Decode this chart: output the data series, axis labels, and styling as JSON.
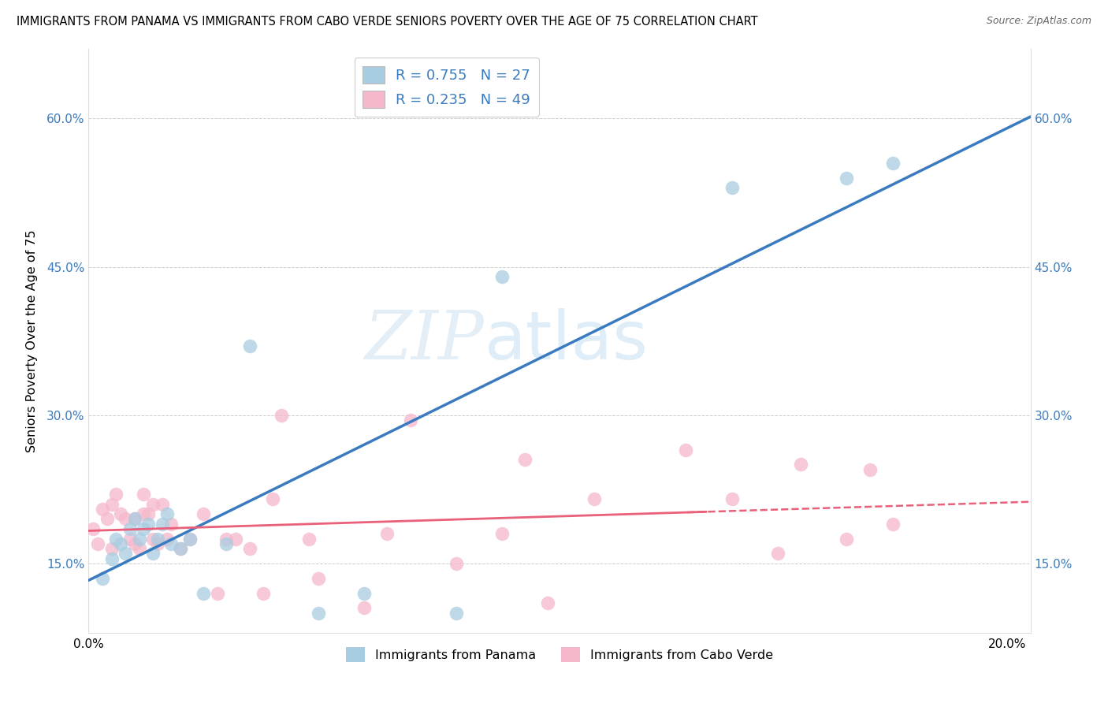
{
  "title": "IMMIGRANTS FROM PANAMA VS IMMIGRANTS FROM CABO VERDE SENIORS POVERTY OVER THE AGE OF 75 CORRELATION CHART",
  "source": "Source: ZipAtlas.com",
  "ylabel": "Seniors Poverty Over the Age of 75",
  "legend_panama": "Immigrants from Panama",
  "legend_caboverde": "Immigrants from Cabo Verde",
  "R_panama": 0.755,
  "N_panama": 27,
  "R_caboverde": 0.235,
  "N_caboverde": 49,
  "xlim": [
    0.0,
    0.205
  ],
  "ylim": [
    0.08,
    0.67
  ],
  "xticks": [
    0.0,
    0.04,
    0.08,
    0.12,
    0.16,
    0.2
  ],
  "yticks": [
    0.15,
    0.3,
    0.45,
    0.6
  ],
  "ytick_labels": [
    "15.0%",
    "30.0%",
    "45.0%",
    "60.0%"
  ],
  "xtick_labels": [
    "0.0%",
    "",
    "",
    "",
    "",
    "20.0%"
  ],
  "color_panama": "#a8cce0",
  "color_caboverde": "#f5b8cb",
  "line_color_panama": "#3a7bbf",
  "line_color_caboverde": "#e8607a",
  "watermark_zip": "ZIP",
  "watermark_atlas": "atlas",
  "panama_x": [
    0.003,
    0.005,
    0.006,
    0.007,
    0.008,
    0.009,
    0.01,
    0.011,
    0.012,
    0.013,
    0.014,
    0.015,
    0.016,
    0.017,
    0.018,
    0.02,
    0.022,
    0.025,
    0.03,
    0.035,
    0.05,
    0.06,
    0.08,
    0.09,
    0.14,
    0.165,
    0.175
  ],
  "panama_y": [
    0.135,
    0.155,
    0.175,
    0.17,
    0.16,
    0.185,
    0.195,
    0.175,
    0.185,
    0.19,
    0.16,
    0.175,
    0.19,
    0.2,
    0.17,
    0.165,
    0.175,
    0.12,
    0.17,
    0.37,
    0.1,
    0.12,
    0.1,
    0.44,
    0.53,
    0.54,
    0.555
  ],
  "caboverde_x": [
    0.001,
    0.002,
    0.003,
    0.004,
    0.005,
    0.005,
    0.006,
    0.007,
    0.008,
    0.009,
    0.01,
    0.01,
    0.011,
    0.012,
    0.012,
    0.013,
    0.014,
    0.014,
    0.015,
    0.016,
    0.017,
    0.018,
    0.02,
    0.022,
    0.025,
    0.028,
    0.03,
    0.032,
    0.035,
    0.038,
    0.04,
    0.042,
    0.048,
    0.05,
    0.06,
    0.065,
    0.07,
    0.08,
    0.09,
    0.095,
    0.1,
    0.11,
    0.13,
    0.14,
    0.15,
    0.155,
    0.165,
    0.17,
    0.175
  ],
  "caboverde_y": [
    0.185,
    0.17,
    0.205,
    0.195,
    0.165,
    0.21,
    0.22,
    0.2,
    0.195,
    0.175,
    0.17,
    0.195,
    0.165,
    0.2,
    0.22,
    0.2,
    0.21,
    0.175,
    0.17,
    0.21,
    0.175,
    0.19,
    0.165,
    0.175,
    0.2,
    0.12,
    0.175,
    0.175,
    0.165,
    0.12,
    0.215,
    0.3,
    0.175,
    0.135,
    0.105,
    0.18,
    0.295,
    0.15,
    0.18,
    0.255,
    0.11,
    0.215,
    0.265,
    0.215,
    0.16,
    0.25,
    0.175,
    0.245,
    0.19
  ]
}
